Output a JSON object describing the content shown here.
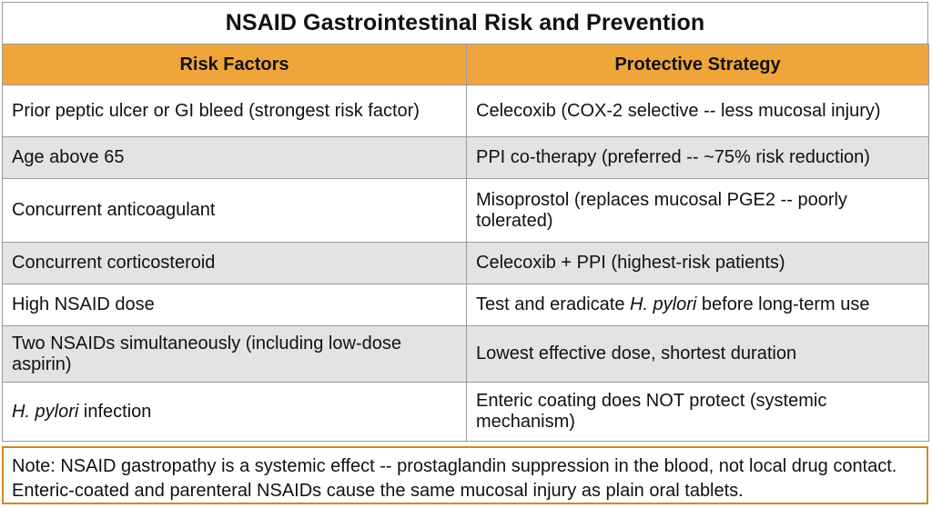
{
  "title": "NSAID Gastrointestinal Risk and Prevention",
  "table": {
    "headers": [
      "Risk Factors",
      "Protective Strategy"
    ],
    "rows": [
      {
        "risk": "Prior peptic ulcer or GI bleed (strongest risk factor)",
        "strategy": "Celecoxib (COX-2 selective -- less mucosal injury)"
      },
      {
        "risk": "Age above 65",
        "strategy": "PPI co-therapy (preferred -- ~75% risk reduction)"
      },
      {
        "risk": "Concurrent anticoagulant",
        "strategy": "Misoprostol (replaces mucosal PGE2 -- poorly tolerated)"
      },
      {
        "risk": "Concurrent corticosteroid",
        "strategy": "Celecoxib + PPI (highest-risk patients)"
      },
      {
        "risk": "High NSAID dose",
        "strategy_pre": "Test and eradicate ",
        "strategy_em": "H. pylori",
        "strategy_post": " before long-term use"
      },
      {
        "risk": "Two NSAIDs simultaneously (including low-dose aspirin)",
        "strategy": "Lowest effective dose, shortest duration"
      },
      {
        "risk_em": "H. pylori",
        "risk_post": " infection",
        "strategy": "Enteric coating does NOT protect (systemic mechanism)"
      }
    ]
  },
  "note": "Note: NSAID gastropathy is a systemic effect -- prostaglandin suppression in the blood, not local drug contact. Enteric-coated and parenteral NSAIDs cause the same mucosal injury as plain oral tablets."
}
